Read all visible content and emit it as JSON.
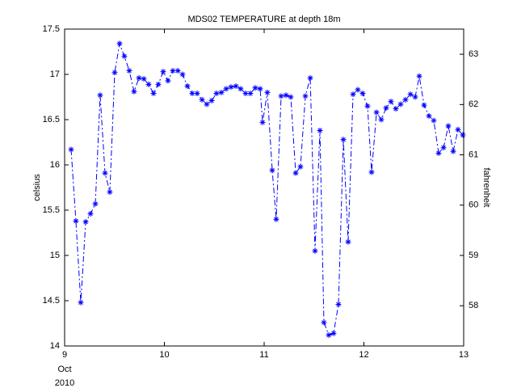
{
  "chart_data": {
    "type": "line",
    "title": "MDS02 TEMPERATURE at depth 18m",
    "ylabel": "celsius",
    "y2label": "fahrenheit",
    "x_sublabels": [
      "Oct",
      "2010"
    ],
    "xlim": [
      9,
      13
    ],
    "xticks": [
      9,
      10,
      11,
      12,
      13
    ],
    "ylim": [
      14,
      17.5
    ],
    "yticks": [
      14,
      14.5,
      15,
      15.5,
      16,
      16.5,
      17,
      17.5
    ],
    "y2lim": [
      57.2,
      63.5
    ],
    "y2ticks": [
      58,
      59,
      60,
      61,
      62,
      63
    ],
    "marker": "*",
    "line_style": "dash-dot",
    "series": [
      {
        "color": "#0000ff",
        "x": [
          9.065,
          9.113,
          9.162,
          9.211,
          9.259,
          9.308,
          9.356,
          9.405,
          9.453,
          9.502,
          9.551,
          9.599,
          9.648,
          9.696,
          9.745,
          9.794,
          9.842,
          9.891,
          9.939,
          9.988,
          10.036,
          10.085,
          10.134,
          10.182,
          10.231,
          10.279,
          10.328,
          10.377,
          10.425,
          10.474,
          10.522,
          10.571,
          10.619,
          10.668,
          10.717,
          10.765,
          10.814,
          10.862,
          10.911,
          10.96,
          10.984,
          11.032,
          11.081,
          11.121,
          11.17,
          11.219,
          11.267,
          11.316,
          11.364,
          11.413,
          11.462,
          11.51,
          11.559,
          11.599,
          11.648,
          11.696,
          11.745,
          11.794,
          11.842,
          11.891,
          11.939,
          11.988,
          12.036,
          12.077,
          12.126,
          12.174,
          12.223,
          12.271,
          12.32,
          12.368,
          12.417,
          12.466,
          12.514,
          12.555,
          12.603,
          12.652,
          12.7,
          12.749,
          12.798,
          12.846,
          12.895,
          12.943,
          12.992
        ],
        "values": [
          16.17,
          15.38,
          14.48,
          15.37,
          15.46,
          15.57,
          16.77,
          15.91,
          15.7,
          17.02,
          17.34,
          17.2,
          17.04,
          16.81,
          16.96,
          16.95,
          16.89,
          16.79,
          16.89,
          17.03,
          16.93,
          17.04,
          17.04,
          17.0,
          16.87,
          16.79,
          16.79,
          16.72,
          16.67,
          16.71,
          16.79,
          16.8,
          16.84,
          16.86,
          16.87,
          16.84,
          16.79,
          16.79,
          16.85,
          16.84,
          16.47,
          16.8,
          15.94,
          15.4,
          16.76,
          16.77,
          16.75,
          15.91,
          15.98,
          16.76,
          16.96,
          15.05,
          16.38,
          14.26,
          14.12,
          14.14,
          14.46,
          16.28,
          15.15,
          16.78,
          16.83,
          16.79,
          16.65,
          15.92,
          16.58,
          16.5,
          16.63,
          16.7,
          16.62,
          16.67,
          16.72,
          16.78,
          16.75,
          16.98,
          16.66,
          16.54,
          16.49,
          16.13,
          16.19,
          16.43,
          16.15,
          16.39,
          16.33
        ]
      }
    ]
  }
}
